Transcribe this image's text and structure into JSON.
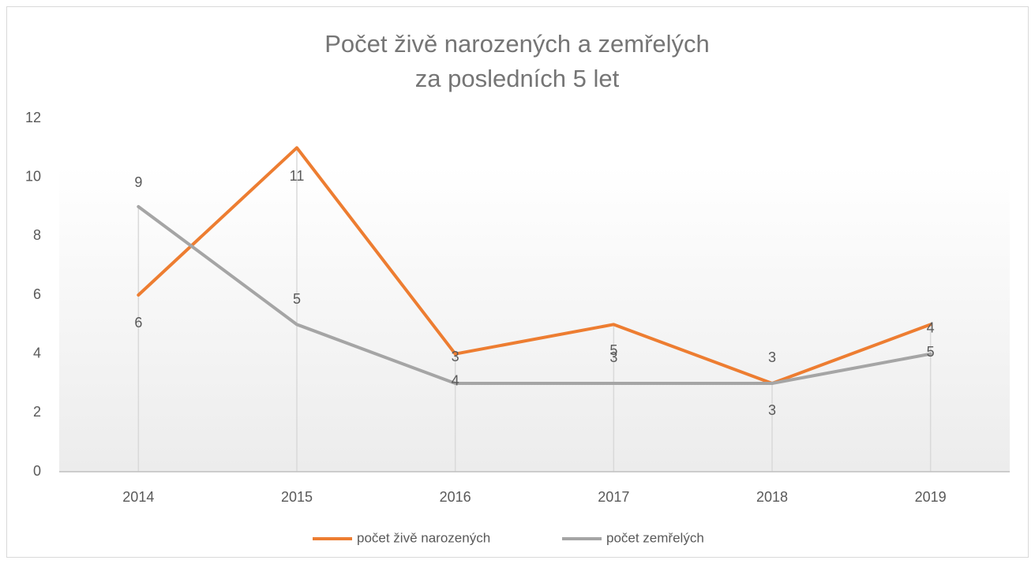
{
  "chart_data": {
    "type": "line",
    "title": [
      "Počet živě narozených a zemřelých",
      "za posledních 5 let"
    ],
    "categories": [
      "2014",
      "2015",
      "2016",
      "2017",
      "2018",
      "2019"
    ],
    "series": [
      {
        "name": "počet živě narozených",
        "color": "#ed7d31",
        "values": [
          6,
          11,
          4,
          5,
          3,
          5
        ]
      },
      {
        "name": "počet zemřelých",
        "color": "#a5a5a5",
        "values": [
          9,
          5,
          3,
          3,
          3,
          4
        ]
      }
    ],
    "ylim": [
      0,
      12
    ],
    "yticks": [
      0,
      2,
      4,
      6,
      8,
      10,
      12
    ],
    "grid": false,
    "data_labels": true,
    "legend": "bottom"
  }
}
